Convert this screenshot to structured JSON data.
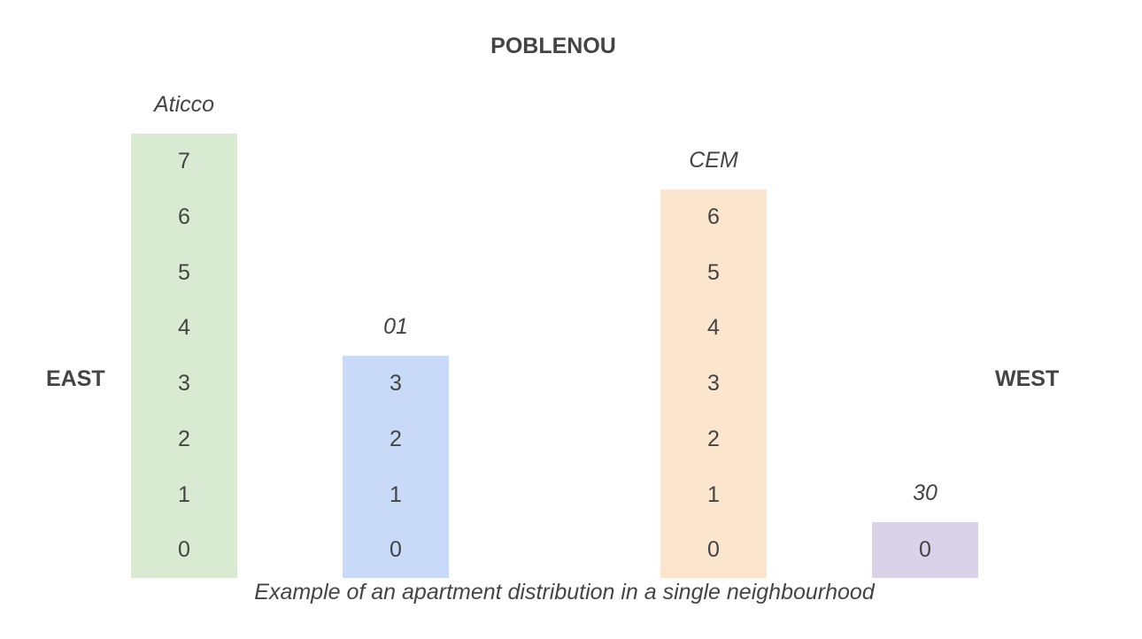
{
  "title": "POBLENOU",
  "side_left": "EAST",
  "side_right": "WEST",
  "caption": "Example of an apartment distribution in a single neighbourhood",
  "buildings": [
    {
      "name": "Aticco",
      "floors": [
        "7",
        "6",
        "5",
        "4",
        "3",
        "2",
        "1",
        "0"
      ],
      "color": "#d9ead3"
    },
    {
      "name": "01",
      "floors": [
        "3",
        "2",
        "1",
        "0"
      ],
      "color": "#c9daf8"
    },
    {
      "name": "CEM",
      "floors": [
        "6",
        "5",
        "4",
        "3",
        "2",
        "1",
        "0"
      ],
      "color": "#fce5cd"
    },
    {
      "name": "30",
      "floors": [
        "0"
      ],
      "color": "#d9d2e9"
    }
  ]
}
